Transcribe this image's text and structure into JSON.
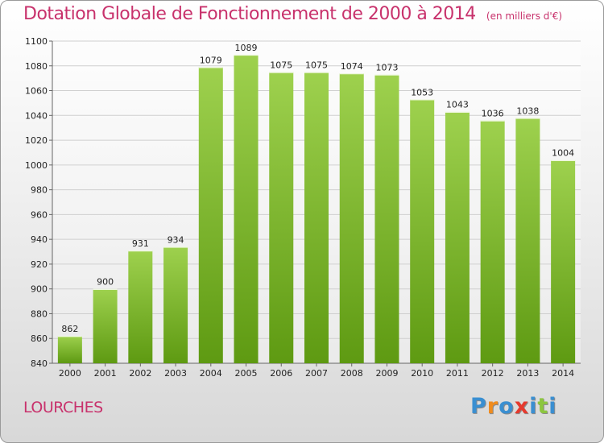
{
  "header": {
    "title": "Dotation Globale de Fonctionnement de 2000 à 2014",
    "subtitle": "(en milliers d'€)"
  },
  "footer": {
    "city": "LOURCHES",
    "brand": [
      "P",
      "r",
      "o",
      "x",
      "i",
      "t",
      "i"
    ],
    "brand_colors": [
      "#3a8fd1",
      "#f08c1e",
      "#3a8fd1",
      "#e53a2e",
      "#3a8fd1",
      "#8cc63f",
      "#3a8fd1"
    ]
  },
  "colors": {
    "bar_top": "#9ed14e",
    "bar_bottom": "#5e9a12",
    "grid": "#cfcfcf",
    "title": "#c8326c"
  },
  "chart_data": {
    "type": "bar",
    "title": "Dotation Globale de Fonctionnement de 2000 à 2014",
    "subtitle": "(en milliers d'€)",
    "categories": [
      "2000",
      "2001",
      "2002",
      "2003",
      "2004",
      "2005",
      "2006",
      "2007",
      "2008",
      "2009",
      "2010",
      "2011",
      "2012",
      "2013",
      "2014"
    ],
    "values": [
      862,
      900,
      931,
      934,
      1079,
      1089,
      1075,
      1075,
      1074,
      1073,
      1053,
      1043,
      1036,
      1038,
      1004
    ],
    "ylim": [
      840,
      1100
    ],
    "yticks": [
      840,
      860,
      880,
      900,
      920,
      940,
      960,
      980,
      1000,
      1020,
      1040,
      1060,
      1080,
      1100
    ],
    "grid": true,
    "data_labels": true
  }
}
